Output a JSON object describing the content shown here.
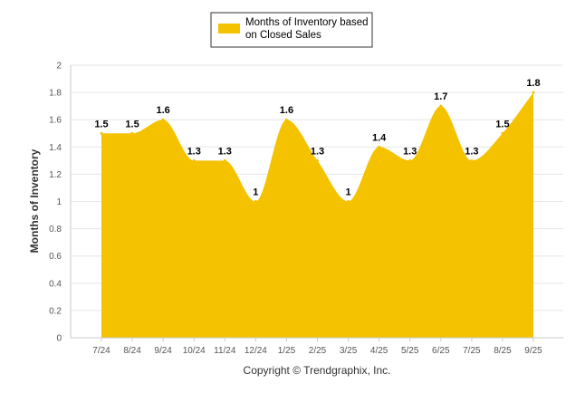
{
  "chart_data": {
    "type": "area",
    "categories": [
      "7/24",
      "8/24",
      "9/24",
      "10/24",
      "11/24",
      "12/24",
      "1/25",
      "2/25",
      "3/25",
      "4/25",
      "5/25",
      "6/25",
      "7/25",
      "8/25",
      "9/25"
    ],
    "series": [
      {
        "name": "Months of Inventory based on Closed Sales",
        "values": [
          1.5,
          1.5,
          1.6,
          1.3,
          1.3,
          1.0,
          1.6,
          1.3,
          1.0,
          1.4,
          1.3,
          1.7,
          1.3,
          1.5,
          1.8
        ],
        "data_labels": [
          "1.5",
          "1.5",
          "1.6",
          "1.3",
          "1.3",
          "1",
          "1.6",
          "1.3",
          "1",
          "1.4",
          "1.3",
          "1.7",
          "1.3",
          "1.5",
          "1.8"
        ],
        "color": "#F5C200"
      }
    ],
    "ylabel": "Months of Inventory",
    "xlabel": "",
    "ylim": [
      0,
      2
    ],
    "y_ticks": [
      "0",
      "0.2",
      "0.4",
      "0.6",
      "0.8",
      "1",
      "1.2",
      "1.4",
      "1.6",
      "1.8",
      "2"
    ],
    "grid": "horizontal",
    "legend_position": "top-center",
    "legend_lines": [
      "Months of Inventory based",
      "on Closed Sales"
    ]
  },
  "footer": {
    "copyright": "Copyright © Trendgraphix, Inc."
  },
  "colors": {
    "area": "#F5C200",
    "grid": "#e6e6e6",
    "axis": "#c8c8c8",
    "legend_border": "#333333"
  }
}
